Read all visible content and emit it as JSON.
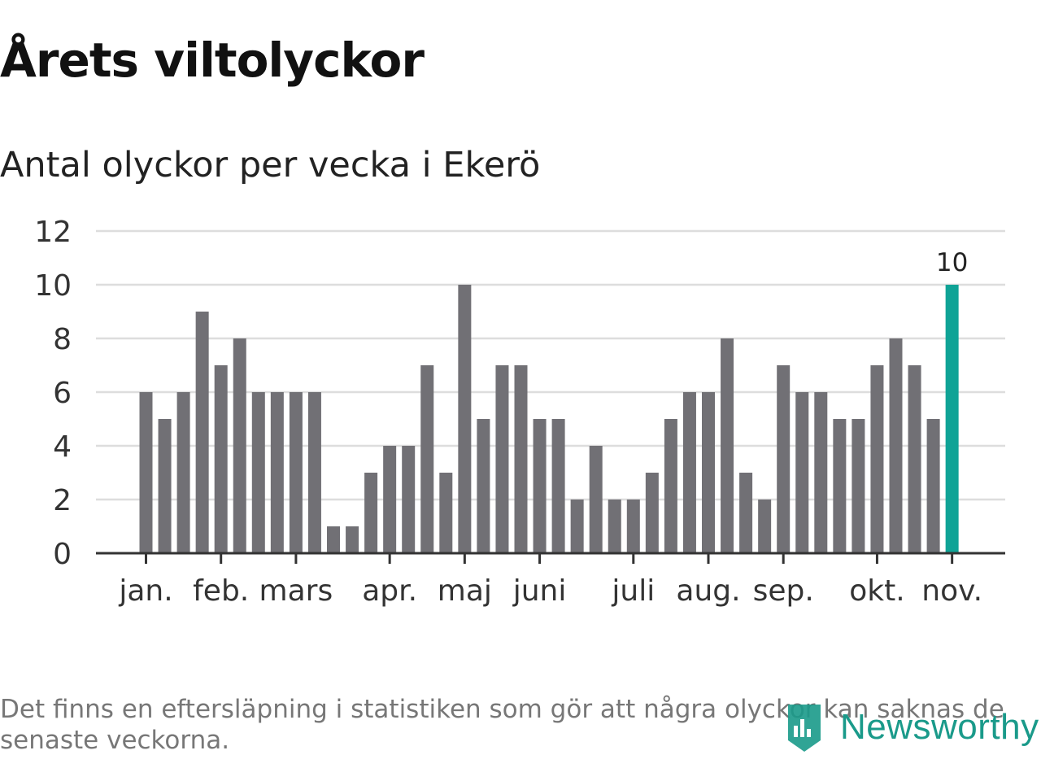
{
  "title": "Årets viltolyckor",
  "subtitle": "Antal olyckor per vecka i Ekerö",
  "footnote": "Det finns en eftersläpning i statistiken som gör att några olyckor kan saknas de senaste veckorna.",
  "logo": {
    "text": "Newsworthy",
    "icon": "newsworthy-logo-icon"
  },
  "colors": {
    "bar": "#717075",
    "highlight": "#0fa396",
    "grid": "#dddddd",
    "axis": "#333333",
    "logo": "#1a9a8a"
  },
  "chart_data": {
    "type": "bar",
    "ylim": [
      0,
      12
    ],
    "yticks": [
      0,
      2,
      4,
      6,
      8,
      10,
      12
    ],
    "grid": true,
    "values": [
      6,
      5,
      6,
      9,
      7,
      8,
      6,
      6,
      6,
      6,
      1,
      1,
      3,
      4,
      4,
      7,
      3,
      10,
      5,
      7,
      7,
      5,
      5,
      2,
      4,
      2,
      2,
      3,
      5,
      6,
      6,
      8,
      3,
      2,
      7,
      6,
      6,
      5,
      5,
      7,
      8,
      7,
      5,
      10
    ],
    "highlight_index": 43,
    "highlight_label": "10",
    "month_labels": [
      {
        "label": "jan.",
        "at": 0
      },
      {
        "label": "feb.",
        "at": 4
      },
      {
        "label": "mars",
        "at": 8
      },
      {
        "label": "apr.",
        "at": 13
      },
      {
        "label": "maj",
        "at": 17
      },
      {
        "label": "juni",
        "at": 21
      },
      {
        "label": "juli",
        "at": 26
      },
      {
        "label": "aug.",
        "at": 30
      },
      {
        "label": "sep.",
        "at": 34
      },
      {
        "label": "okt.",
        "at": 39
      },
      {
        "label": "nov.",
        "at": 43
      }
    ]
  }
}
